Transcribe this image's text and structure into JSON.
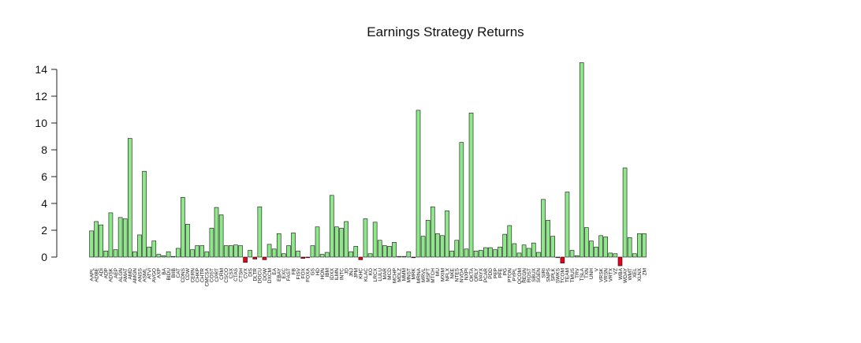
{
  "chart_data": {
    "type": "bar",
    "title": "Earnings Strategy Returns",
    "xlabel": "",
    "ylabel": "",
    "ylim": [
      -0.6,
      14.6
    ],
    "yticks": [
      0,
      2,
      4,
      6,
      8,
      10,
      12,
      14
    ],
    "ytick_labels": [
      "0",
      "2",
      "4",
      "6",
      "8",
      "10",
      "12",
      "14"
    ],
    "grid": false,
    "colors": {
      "positive": "#8ee88a",
      "negative": "#e8001c"
    },
    "categories": [
      "AAPL",
      "ADBE",
      "ADI",
      "ADP",
      "ADSK",
      "AEP",
      "ALGN",
      "AMAT",
      "AMD",
      "AMGN",
      "ANSS",
      "ASML",
      "ATVI",
      "AVGO",
      "AXP",
      "BA",
      "BIDU",
      "BIIB",
      "CAT",
      "CDNS",
      "CDW",
      "CERN",
      "CHKP",
      "CHTR",
      "CMCSA",
      "COST",
      "CPRT",
      "CRM",
      "CSCO",
      "CSX",
      "CTAS",
      "CTSH",
      "CVX",
      "DIS",
      "DLTR",
      "DOCU",
      "DOW",
      "DXCM",
      "EA",
      "EBAY",
      "EXC",
      "FAST",
      "FB",
      "FISV",
      "FOX",
      "FOXA",
      "GS",
      "HD",
      "HON",
      "IBM",
      "IDXX",
      "ILMN",
      "INTC",
      "JD",
      "JNJ",
      "JPM",
      "KHC",
      "KLAC",
      "KO",
      "LRCX",
      "LULU",
      "MAR",
      "MCD",
      "MCHP",
      "MDLZ",
      "MMM",
      "MNST",
      "MRK",
      "MRNA",
      "MRVL",
      "MSFT",
      "MTCH",
      "MU",
      "MXIM",
      "NFLX",
      "NKE",
      "NTES",
      "NVDA",
      "NXPI",
      "OKTA",
      "ORLY",
      "PAYX",
      "PCAR",
      "PDD",
      "PEP",
      "PFE",
      "PG",
      "PTON",
      "PYPL",
      "QCOM",
      "REGN",
      "ROST",
      "SBUX",
      "SGEN",
      "SIRI",
      "SNPS",
      "SPLK",
      "SWKS",
      "TCOM",
      "TEAM",
      "TMUS",
      "TRV",
      "TSLA",
      "TXN",
      "UNH",
      "V",
      "VRSK",
      "VRSN",
      "VRTX",
      "VZ",
      "WBA",
      "WDAY",
      "WMT",
      "XEL",
      "XLNX",
      "ZM"
    ],
    "values": [
      1.95,
      2.65,
      2.4,
      0.45,
      3.3,
      0.55,
      2.95,
      2.85,
      8.85,
      0.4,
      1.65,
      6.4,
      0.75,
      1.2,
      0.2,
      0.1,
      0.4,
      0.05,
      0.65,
      4.45,
      2.45,
      0.55,
      0.85,
      0.85,
      0.4,
      2.15,
      3.7,
      3.15,
      0.85,
      0.85,
      0.9,
      0.85,
      -0.4,
      0.5,
      -0.15,
      3.75,
      -0.2,
      0.95,
      0.6,
      1.75,
      0.25,
      0.85,
      1.8,
      0.45,
      -0.1,
      -0.05,
      0.85,
      2.25,
      0.2,
      0.35,
      4.6,
      2.25,
      2.15,
      2.65,
      0.4,
      0.8,
      -0.2,
      2.85,
      0.25,
      2.6,
      1.25,
      0.85,
      0.8,
      1.1,
      0.05,
      0.05,
      0.4,
      -0.05,
      10.95,
      1.55,
      2.75,
      3.75,
      1.75,
      1.6,
      3.45,
      0.45,
      1.25,
      8.55,
      0.6,
      10.75,
      0.45,
      0.5,
      0.7,
      0.7,
      0.55,
      0.75,
      1.7,
      2.35,
      1.0,
      0.3,
      0.9,
      0.65,
      1.05,
      0.35,
      4.3,
      2.75,
      1.55,
      0.0,
      -0.45,
      4.85,
      0.5,
      0.1,
      14.5,
      2.2,
      1.2,
      0.75,
      1.6,
      1.5,
      0.3,
      0.25,
      -0.65,
      6.65,
      1.45,
      0.25,
      1.75,
      1.75
    ]
  }
}
